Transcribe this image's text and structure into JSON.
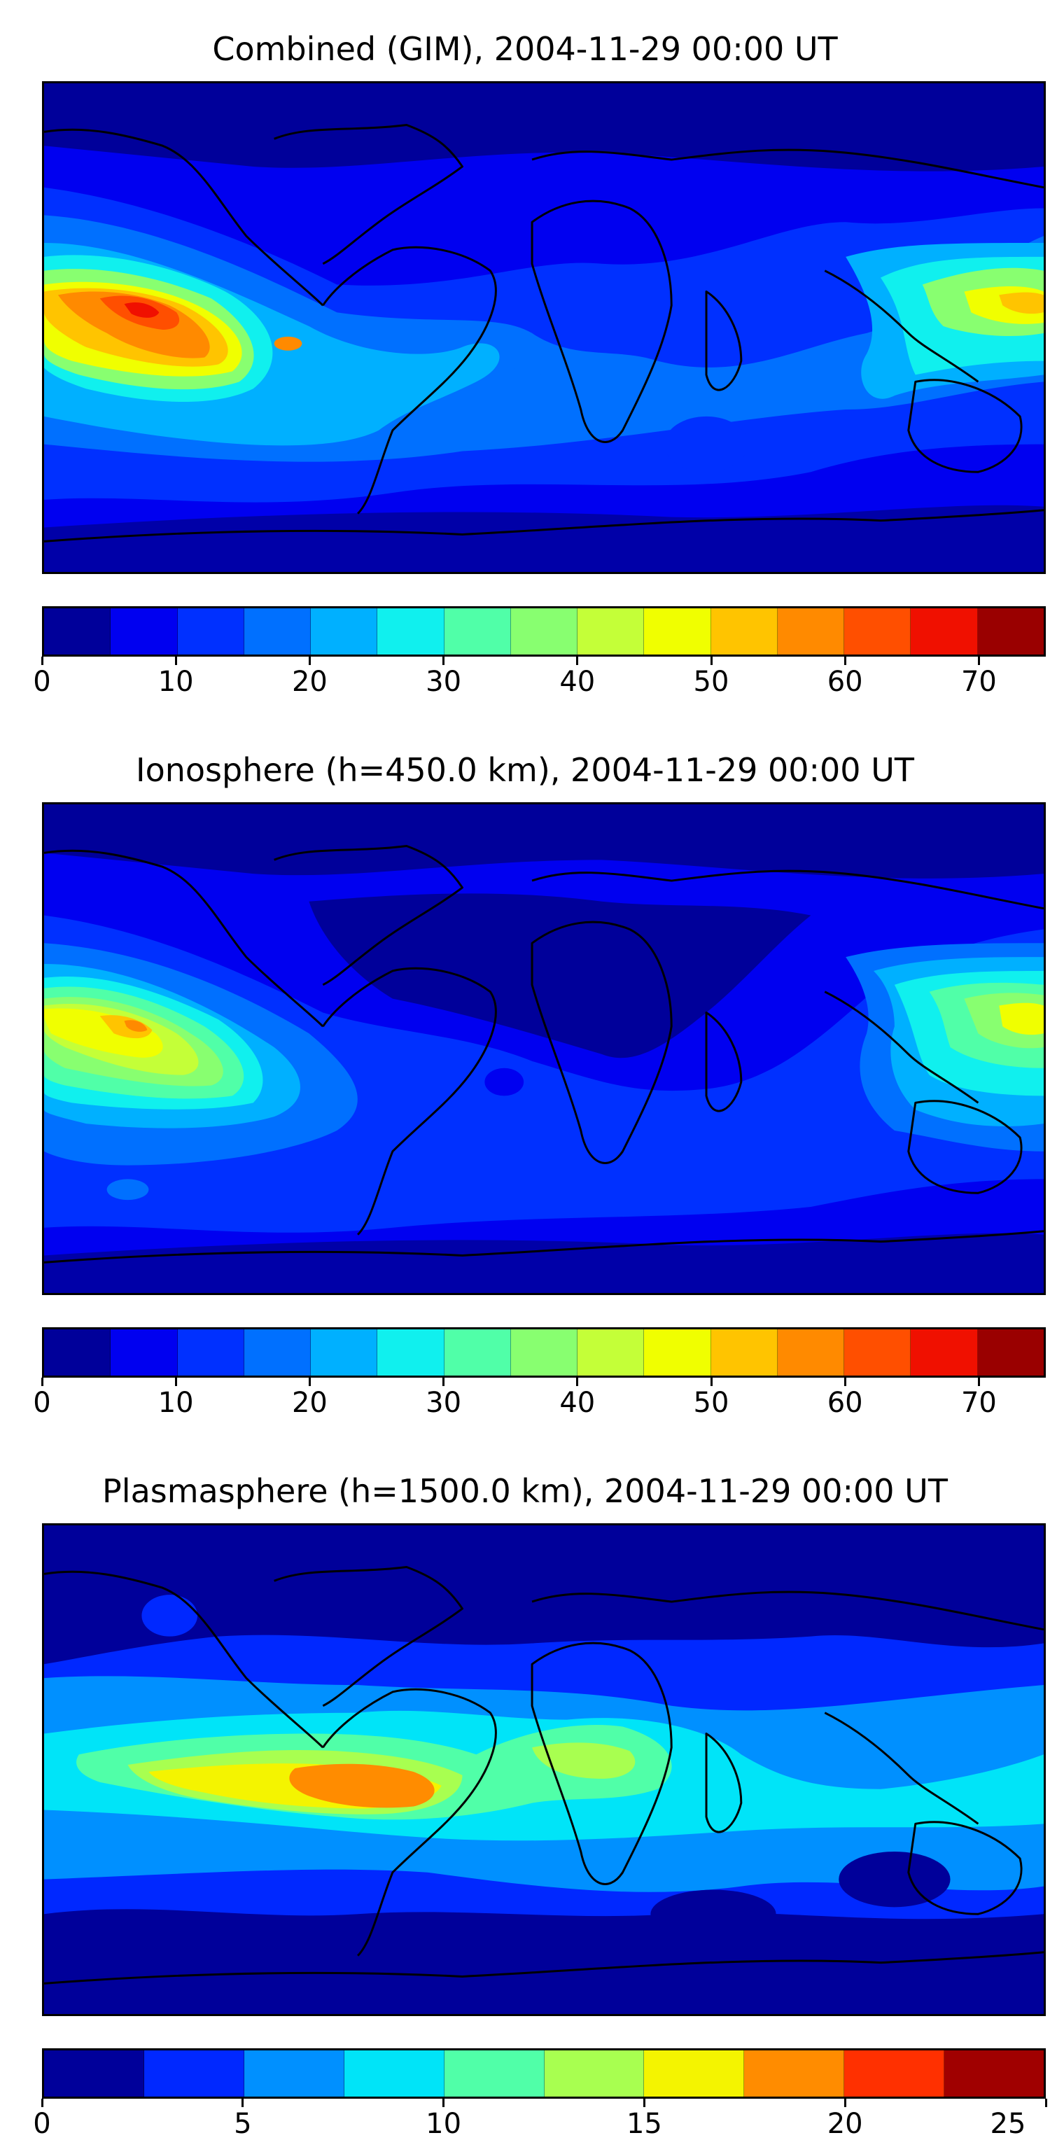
{
  "panels": [
    {
      "title": "Combined (GIM), 2004-11-29 00:00 UT",
      "colorbar": {
        "min": 0,
        "max": 75,
        "colors": [
          "#00009a",
          "#0000f0",
          "#0030ff",
          "#0070ff",
          "#00b0ff",
          "#10f0ee",
          "#50ffa8",
          "#88ff70",
          "#c4ff38",
          "#f0ff00",
          "#ffc400",
          "#ff8a00",
          "#ff4f00",
          "#f01000",
          "#9a0000"
        ],
        "ticks": [
          "0",
          "10",
          "20",
          "30",
          "40",
          "50",
          "60",
          "70"
        ],
        "tick_values": [
          0,
          10,
          20,
          30,
          40,
          50,
          60,
          70
        ]
      }
    },
    {
      "title": "Ionosphere  (h=450.0 km), 2004-11-29 00:00 UT",
      "colorbar": {
        "min": 0,
        "max": 75,
        "colors": [
          "#00009a",
          "#0000f0",
          "#0030ff",
          "#0070ff",
          "#00b0ff",
          "#10f0ee",
          "#50ffa8",
          "#88ff70",
          "#c4ff38",
          "#f0ff00",
          "#ffc400",
          "#ff8a00",
          "#ff4f00",
          "#f01000",
          "#9a0000"
        ],
        "ticks": [
          "0",
          "10",
          "20",
          "30",
          "40",
          "50",
          "60",
          "70"
        ],
        "tick_values": [
          0,
          10,
          20,
          30,
          40,
          50,
          60,
          70
        ]
      }
    },
    {
      "title": "Plasmasphere (h=1500.0 km), 2004-11-29 00:00 UT",
      "colorbar": {
        "min": 0,
        "max": 25,
        "colors": [
          "#00009a",
          "#0028ff",
          "#0090ff",
          "#00e4f8",
          "#50ffa8",
          "#a8ff50",
          "#f4f400",
          "#ff8c00",
          "#ff3000",
          "#a00000"
        ],
        "ticks": [
          "0",
          "5",
          "10",
          "15",
          "20",
          "25"
        ],
        "tick_values": [
          0,
          5,
          10,
          15,
          20,
          25
        ]
      }
    }
  ]
}
